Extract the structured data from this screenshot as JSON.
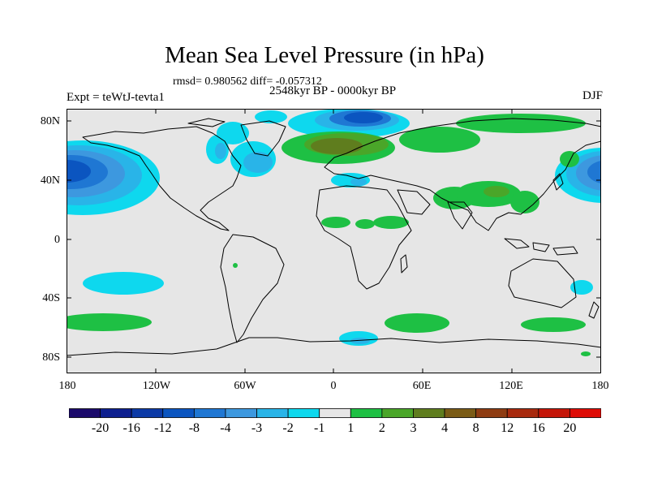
{
  "title": "Mean Sea Level Pressure (in hPa)",
  "stats": "rmsd= 0.980562 diff= -0.057312",
  "experiment": "Expt = teWtJ-tevta1",
  "period": "2548kyr BP - 0000kyr BP",
  "season": "DJF",
  "lat_labels": [
    "80N",
    "40N",
    "0",
    "40S",
    "80S"
  ],
  "lon_labels": [
    "180",
    "120W",
    "60W",
    "0",
    "60E",
    "120E",
    "180"
  ],
  "legend": {
    "colors": [
      "#1b0a6b",
      "#0d1f8f",
      "#0c3aa6",
      "#0b55c0",
      "#1f77d3",
      "#3d98df",
      "#29b4e8",
      "#0ed8ee",
      "#e6e6e6",
      "#1ec044",
      "#4aa629",
      "#5f7d1e",
      "#7a5b16",
      "#8e3c12",
      "#a82a0e",
      "#c41508",
      "#de0c06"
    ],
    "labels": [
      "-20",
      "-16",
      "-12",
      "-8",
      "-4",
      "-3",
      "-2",
      "-1",
      "1",
      "2",
      "3",
      "4",
      "8",
      "12",
      "16",
      "20"
    ]
  }
}
